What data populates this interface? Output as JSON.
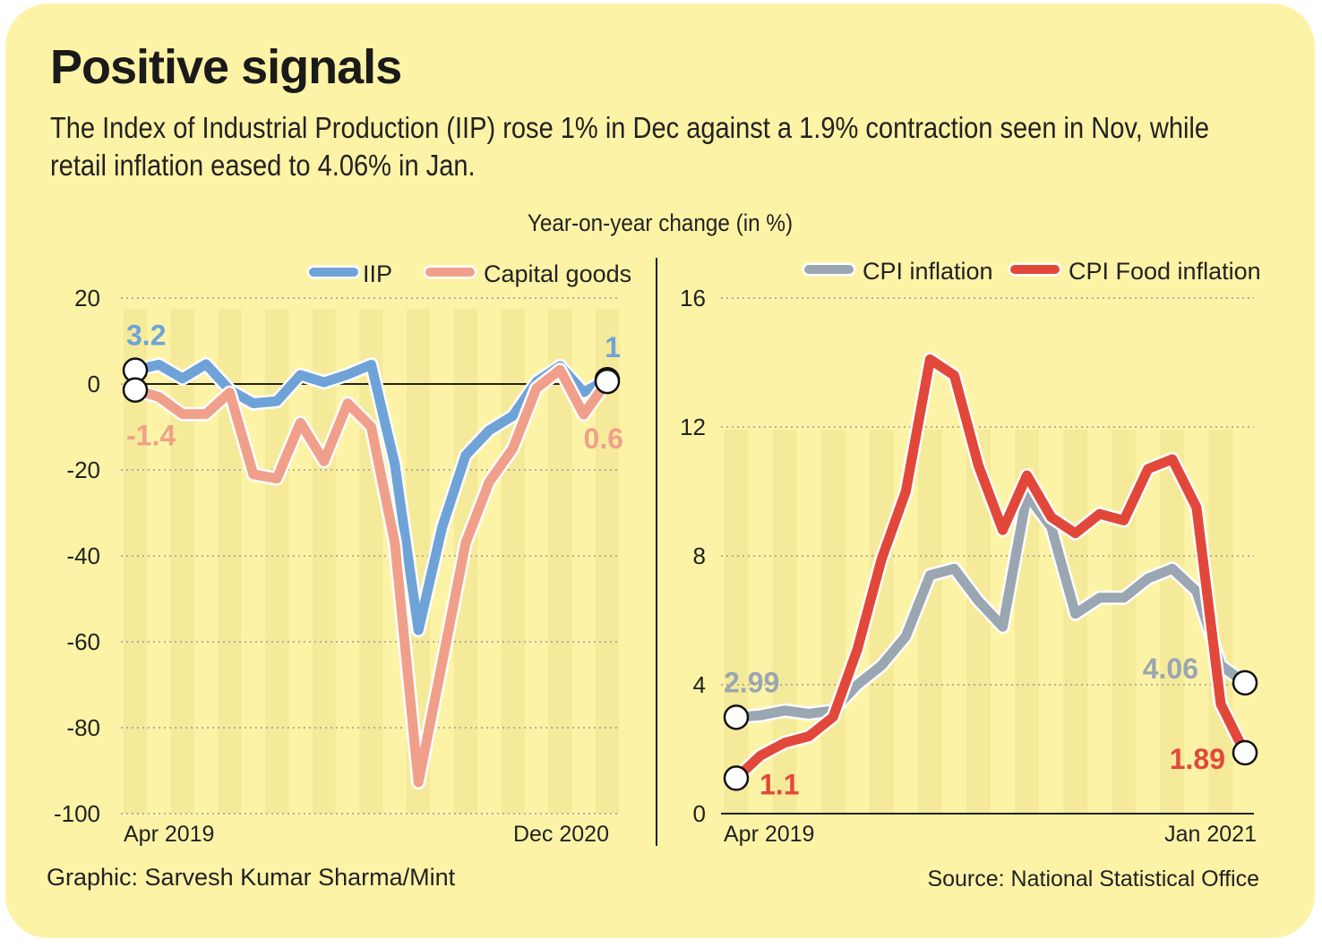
{
  "title": "Positive signals",
  "subtitle": "The Index of Industrial Production (IIP) rose 1% in Dec against a 1.9% contraction seen in Nov, while retail inflation eased to 4.06% in Jan.",
  "units_label": "Year-on-year change (in %)",
  "credit": "Graphic: Sarvesh Kumar Sharma/Mint",
  "source": "Source: National Statistical Office",
  "chart_data": [
    {
      "type": "line",
      "x_start": "Apr 2019",
      "x_end": "Dec 2020",
      "xtick_labels": [
        "Apr 2019",
        "Dec 2020"
      ],
      "ylim": [
        -100,
        20
      ],
      "yticks": [
        20,
        0,
        -20,
        -40,
        -60,
        -80,
        -100
      ],
      "legend": "top-right",
      "grid": true,
      "series": [
        {
          "name": "IIP",
          "color": "#6fa3d8",
          "values": [
            3.2,
            4.5,
            1.3,
            4.6,
            -1.4,
            -4.5,
            -4.0,
            2.1,
            0.4,
            2.2,
            4.5,
            -18.7,
            -57.3,
            -33.4,
            -16.6,
            -10.8,
            -7.4,
            0.5,
            4.2,
            -1.9,
            1
          ],
          "first_label": "3.2",
          "last_label": "1"
        },
        {
          "name": "Capital goods",
          "color": "#f0a08a",
          "values": [
            -1.4,
            -3,
            -7,
            -7,
            -2,
            -21,
            -22,
            -9,
            -18,
            -4.5,
            -10,
            -37,
            -92.7,
            -65,
            -37,
            -22.8,
            -15,
            -1,
            3.3,
            -7.1,
            0.6
          ],
          "first_label": "-1.4",
          "last_label": "0.6"
        }
      ]
    },
    {
      "type": "line",
      "x_start": "Apr 2019",
      "x_end": "Jan 2021",
      "xtick_labels": [
        "Apr 2019",
        "Jan 2021"
      ],
      "ylim": [
        0,
        16
      ],
      "yticks": [
        16,
        12,
        8,
        4,
        0
      ],
      "legend": "top-right",
      "grid": true,
      "series": [
        {
          "name": "CPI inflation",
          "color": "#9aa6b2",
          "values": [
            2.99,
            3.05,
            3.2,
            3.1,
            3.2,
            4.0,
            4.6,
            5.5,
            7.4,
            7.6,
            6.6,
            5.8,
            9.9,
            8.9,
            6.2,
            6.7,
            6.7,
            7.3,
            7.6,
            6.9,
            4.6,
            4.06
          ],
          "first_label": "2.99",
          "last_label": "4.06"
        },
        {
          "name": "CPI Food inflation",
          "color": "#e2483a",
          "values": [
            1.1,
            1.8,
            2.2,
            2.4,
            3.0,
            5.1,
            7.9,
            10.0,
            14.1,
            13.6,
            10.8,
            8.8,
            10.5,
            9.2,
            8.7,
            9.3,
            9.1,
            10.7,
            11.0,
            9.5,
            3.4,
            1.89
          ],
          "first_label": "1.1",
          "last_label": "1.89"
        }
      ]
    }
  ]
}
